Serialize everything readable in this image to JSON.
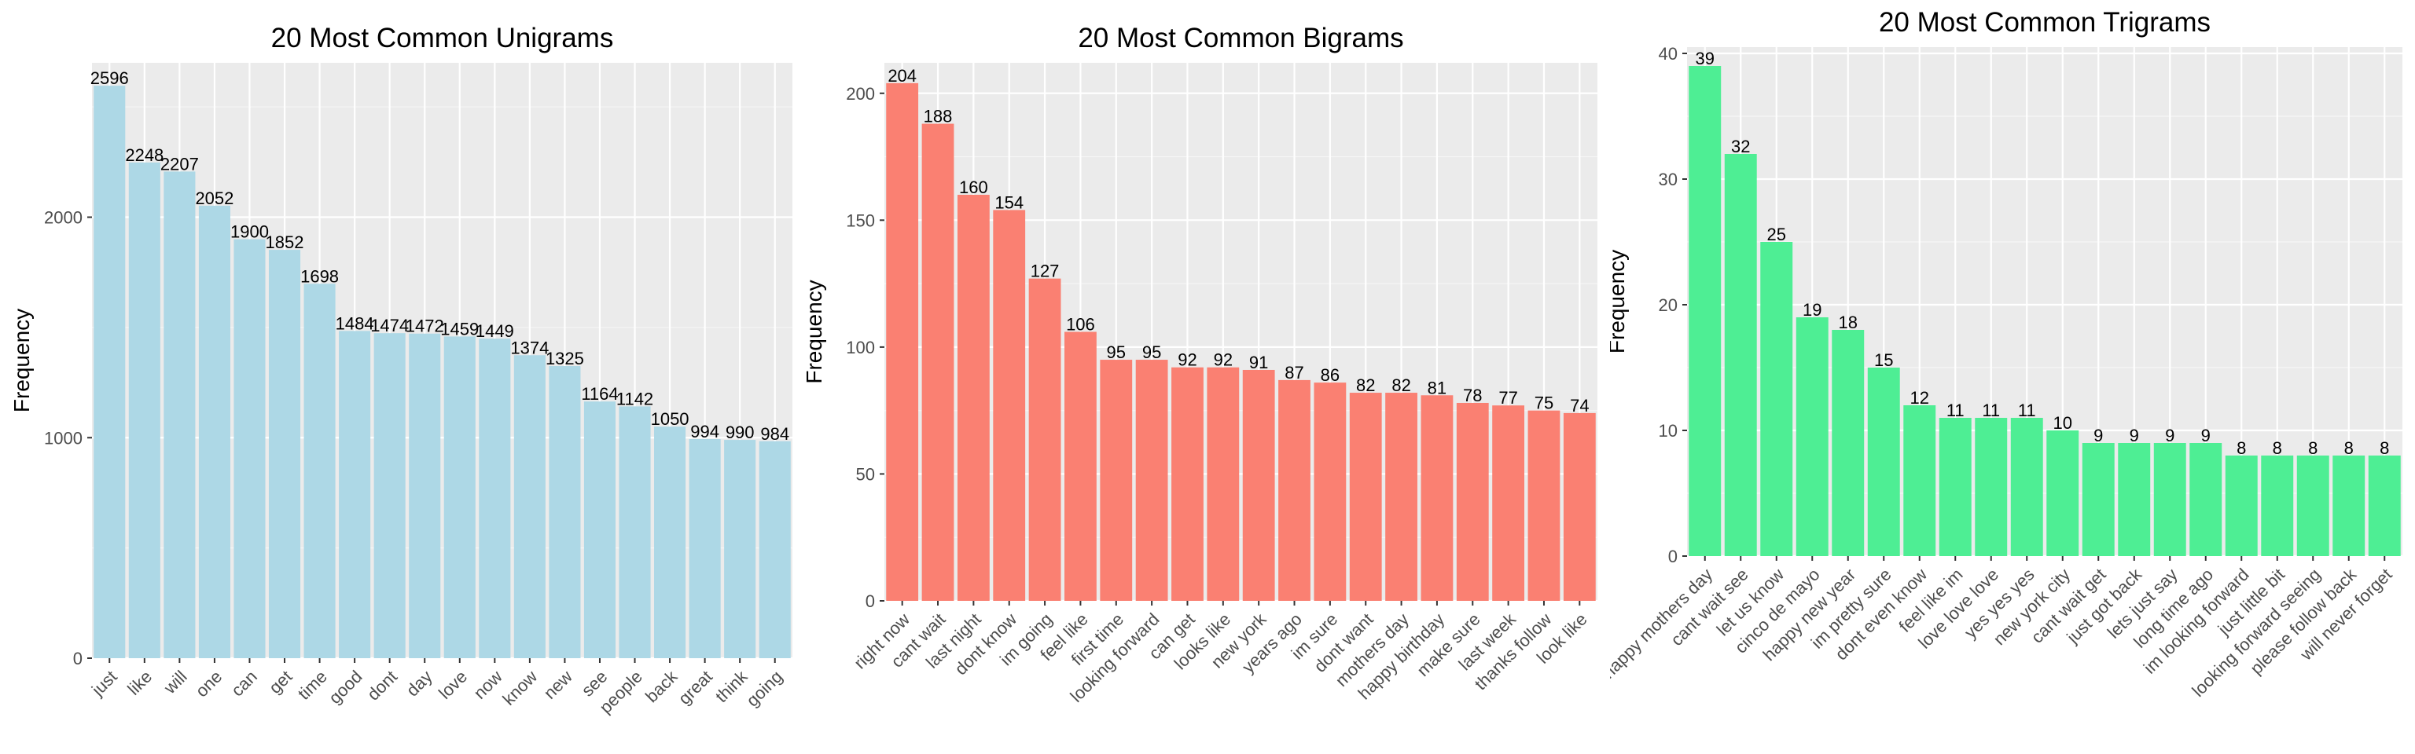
{
  "chart_data": [
    {
      "type": "bar",
      "title": "20 Most Common Unigrams",
      "xlabel": "",
      "ylabel": "Frequency",
      "ylim": [
        0,
        2700
      ],
      "yticks": [
        0,
        1000,
        2000
      ],
      "color": "#add8e6",
      "categories": [
        "just",
        "like",
        "will",
        "one",
        "can",
        "get",
        "time",
        "good",
        "dont",
        "day",
        "love",
        "now",
        "know",
        "new",
        "see",
        "people",
        "back",
        "great",
        "think",
        "going"
      ],
      "values": [
        2596,
        2248,
        2207,
        2052,
        1900,
        1852,
        1698,
        1484,
        1474,
        1472,
        1459,
        1449,
        1374,
        1325,
        1164,
        1142,
        1050,
        994,
        990,
        984
      ]
    },
    {
      "type": "bar",
      "title": "20 Most Common Bigrams",
      "xlabel": "",
      "ylabel": "Frequency",
      "ylim": [
        0,
        212
      ],
      "yticks": [
        0,
        50,
        100,
        150,
        200
      ],
      "color": "#fa8072",
      "categories": [
        "right now",
        "cant wait",
        "last night",
        "dont know",
        "im going",
        "feel like",
        "first time",
        "looking forward",
        "can get",
        "looks like",
        "new york",
        "years ago",
        "im sure",
        "dont want",
        "mothers day",
        "happy birthday",
        "make sure",
        "last week",
        "thanks follow",
        "look like"
      ],
      "values": [
        204,
        188,
        160,
        154,
        127,
        106,
        95,
        95,
        92,
        92,
        91,
        87,
        86,
        82,
        82,
        81,
        78,
        77,
        75,
        74
      ]
    },
    {
      "type": "bar",
      "title": "20 Most Common Trigrams",
      "xlabel": "",
      "ylabel": "Frequency",
      "ylim": [
        0,
        40.5
      ],
      "yticks": [
        0,
        10,
        20,
        30,
        40
      ],
      "color": "#4eee94",
      "categories": [
        "happy mothers day",
        "cant wait see",
        "let us know",
        "cinco de mayo",
        "happy new year",
        "im pretty sure",
        "dont even know",
        "feel like im",
        "love love love",
        "yes yes yes",
        "new york city",
        "cant wait get",
        "just got back",
        "lets just say",
        "long time ago",
        "im looking forward",
        "just little bit",
        "looking forward seeing",
        "please follow back",
        "will never forget"
      ],
      "values": [
        39,
        32,
        25,
        19,
        18,
        15,
        12,
        11,
        11,
        11,
        10,
        9,
        9,
        9,
        9,
        8,
        8,
        8,
        8,
        8
      ]
    }
  ]
}
